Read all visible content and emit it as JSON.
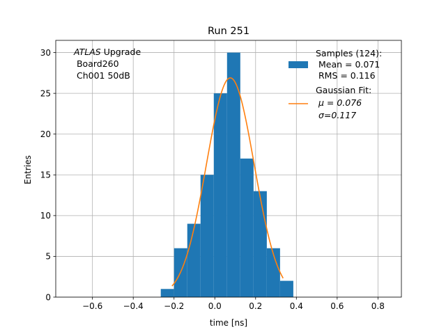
{
  "chart_data": {
    "type": "bar",
    "title": "Run 251",
    "xlabel": "time [ns]",
    "ylabel": "Entries",
    "xlim": [
      -0.78,
      0.915
    ],
    "ylim": [
      0,
      31.5
    ],
    "grid": true,
    "x_ticks": [
      -0.6,
      -0.4,
      -0.2,
      0.0,
      0.2,
      0.4,
      0.6,
      0.8
    ],
    "x_tick_labels": [
      "−0.6",
      "−0.4",
      "−0.2",
      "0.0",
      "0.2",
      "0.4",
      "0.6",
      "0.8"
    ],
    "y_ticks": [
      0,
      5,
      10,
      15,
      20,
      25,
      30
    ],
    "y_tick_labels": [
      "0",
      "5",
      "10",
      "15",
      "20",
      "25",
      "30"
    ],
    "histogram": {
      "bin_edges": [
        -0.265,
        -0.2,
        -0.135,
        -0.07,
        -0.005,
        0.06,
        0.125,
        0.19,
        0.255,
        0.32,
        0.385
      ],
      "counts": [
        1,
        6,
        9,
        15,
        25,
        30,
        17,
        13,
        6,
        2
      ],
      "color": "#1f77b4"
    },
    "fit": {
      "mu": 0.076,
      "sigma": 0.117,
      "amplitude": 26.9,
      "x_range": [
        -0.21,
        0.335
      ],
      "color": "#ff7f0e"
    },
    "annotation": {
      "lines": [
        "ATLAS Upgrade",
        " Board260",
        " Ch001 50dB"
      ]
    },
    "legend": {
      "position": "top-right",
      "entries": [
        {
          "marker": "patch",
          "color": "#1f77b4",
          "lines": [
            "Samples (124):",
            " Mean = 0.071",
            " RMS = 0.116"
          ]
        },
        {
          "marker": "line",
          "color": "#ff7f0e",
          "lines": [
            "Gaussian Fit:",
            " μ = 0.076",
            " σ=0.117"
          ]
        }
      ]
    }
  }
}
